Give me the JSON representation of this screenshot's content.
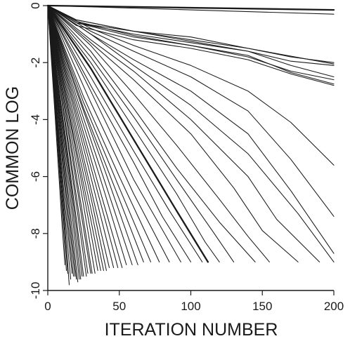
{
  "chart_data": {
    "type": "line",
    "xlabel": "ITERATION NUMBER",
    "ylabel": "COMMON LOG",
    "xlim": [
      0,
      200
    ],
    "ylim": [
      -10,
      0
    ],
    "xticks": [
      0,
      50,
      100,
      150,
      200
    ],
    "yticks": [
      0,
      -2,
      -4,
      -6,
      -8,
      -10
    ],
    "x_tick_labels": [
      "0",
      "50",
      "100",
      "150",
      "200"
    ],
    "y_tick_labels": [
      "0",
      "-2",
      "-4",
      "-6",
      "-8",
      "-10"
    ],
    "legend": "none",
    "grid": false,
    "series": [
      {
        "x": [
          0,
          200
        ],
        "y": [
          0,
          -0.15
        ],
        "bold": true
      },
      {
        "x": [
          0,
          200
        ],
        "y": [
          0,
          -0.3
        ]
      },
      {
        "x": [
          0,
          20,
          60,
          100,
          140,
          170,
          200
        ],
        "y": [
          0,
          -0.5,
          -0.9,
          -1.2,
          -1.5,
          -1.8,
          -2.0
        ]
      },
      {
        "x": [
          0,
          20,
          60,
          100,
          140,
          170,
          200
        ],
        "y": [
          0,
          -0.6,
          -1.0,
          -1.3,
          -1.6,
          -1.95,
          -2.1
        ]
      },
      {
        "x": [
          0,
          20,
          60,
          100,
          140,
          170,
          200
        ],
        "y": [
          0,
          -0.5,
          -0.9,
          -1.25,
          -1.6,
          -2.1,
          -2.5
        ]
      },
      {
        "x": [
          0,
          20,
          60,
          100,
          140,
          170,
          200
        ],
        "y": [
          0,
          -0.6,
          -1.1,
          -1.4,
          -1.8,
          -2.3,
          -2.6
        ]
      },
      {
        "x": [
          0,
          20,
          60,
          100,
          140,
          170,
          200
        ],
        "y": [
          0,
          -0.55,
          -1.05,
          -1.4,
          -1.75,
          -2.35,
          -2.75
        ]
      },
      {
        "x": [
          0,
          20,
          60,
          100,
          140,
          170,
          200
        ],
        "y": [
          0,
          -0.7,
          -1.2,
          -1.5,
          -1.9,
          -2.4,
          -2.8
        ]
      },
      {
        "x": [
          0,
          20,
          60,
          100,
          140,
          200
        ],
        "y": [
          0,
          -0.6,
          -0.9,
          -1.1,
          -1.5,
          -2.05
        ]
      },
      {
        "x": [
          0,
          30,
          60,
          100,
          140,
          170,
          200
        ],
        "y": [
          0,
          -0.8,
          -1.4,
          -2.1,
          -3.0,
          -4.1,
          -5.6
        ]
      },
      {
        "x": [
          0,
          30,
          60,
          100,
          140,
          170,
          200
        ],
        "y": [
          0,
          -0.9,
          -1.6,
          -2.5,
          -3.7,
          -5.4,
          -7.4
        ]
      },
      {
        "x": [
          0,
          30,
          60,
          100,
          140,
          170,
          200
        ],
        "y": [
          0,
          -1.0,
          -1.9,
          -3.0,
          -4.5,
          -6.5,
          -8.7
        ]
      },
      {
        "x": [
          0,
          30,
          60,
          100,
          140,
          175,
          200
        ],
        "y": [
          0,
          -1.0,
          -2.1,
          -3.5,
          -5.2,
          -7.3,
          -9.0
        ]
      },
      {
        "x": [
          0,
          30,
          60,
          100,
          140,
          160,
          190
        ],
        "y": [
          0,
          -1.2,
          -2.3,
          -4.0,
          -6.0,
          -7.5,
          -9.0
        ]
      },
      {
        "x": [
          0,
          30,
          60,
          100,
          130,
          150,
          175
        ],
        "y": [
          0,
          -1.3,
          -2.6,
          -4.5,
          -6.4,
          -7.9,
          -9.0
        ]
      },
      {
        "x": [
          0,
          30,
          60,
          90,
          120,
          140,
          155
        ],
        "y": [
          0,
          -1.4,
          -3.1,
          -4.9,
          -6.8,
          -8.1,
          -9.0
        ]
      },
      {
        "x": [
          0,
          30,
          60,
          90,
          120,
          145
        ],
        "y": [
          0,
          -1.6,
          -3.6,
          -5.7,
          -7.6,
          -9.0
        ]
      },
      {
        "x": [
          0,
          30,
          60,
          90,
          115,
          130
        ],
        "y": [
          0,
          -1.8,
          -3.9,
          -6.1,
          -7.9,
          -9.0
        ]
      },
      {
        "x": [
          0,
          30,
          60,
          90,
          110,
          120
        ],
        "y": [
          0,
          -2.0,
          -4.3,
          -6.6,
          -8.3,
          -9.0
        ]
      },
      {
        "x": [
          0,
          30,
          60,
          90,
          112
        ],
        "y": [
          0,
          -2.2,
          -4.7,
          -7.2,
          -9.0
        ],
        "bold": true
      },
      {
        "x": [
          0,
          30,
          60,
          85,
          108
        ],
        "y": [
          0,
          -2.5,
          -5.1,
          -7.2,
          -9.0
        ]
      },
      {
        "x": [
          0,
          30,
          60,
          80,
          100
        ],
        "y": [
          0,
          -2.8,
          -5.5,
          -7.4,
          -9.0
        ]
      },
      {
        "x": [
          0,
          30,
          60,
          93
        ],
        "y": [
          0,
          -3.0,
          -6.1,
          -9.0
        ]
      },
      {
        "x": [
          0,
          30,
          60,
          85
        ],
        "y": [
          0,
          -3.4,
          -6.6,
          -9.0
        ]
      },
      {
        "x": [
          0,
          25,
          50,
          78
        ],
        "y": [
          0,
          -3.2,
          -6.0,
          -9.0
        ]
      },
      {
        "x": [
          0,
          25,
          50,
          72
        ],
        "y": [
          0,
          -3.4,
          -6.4,
          -9.0
        ]
      },
      {
        "x": [
          0,
          25,
          50,
          67
        ],
        "y": [
          0,
          -3.6,
          -6.8,
          -9.0
        ]
      },
      {
        "x": [
          0,
          20,
          40,
          63
        ],
        "y": [
          0,
          -3.0,
          -5.8,
          -9.1
        ]
      },
      {
        "x": [
          0,
          20,
          40,
          59
        ],
        "y": [
          0,
          -3.2,
          -6.2,
          -9.1
        ]
      },
      {
        "x": [
          0,
          20,
          40,
          55
        ],
        "y": [
          0,
          -3.4,
          -6.6,
          -9.1
        ]
      },
      {
        "x": [
          0,
          20,
          40,
          52
        ],
        "y": [
          0,
          -3.6,
          -7.1,
          -9.2
        ]
      },
      {
        "x": [
          0,
          20,
          40,
          49
        ],
        "y": [
          0,
          -3.8,
          -7.5,
          -9.2
        ]
      },
      {
        "x": [
          0,
          15,
          30,
          46
        ],
        "y": [
          0,
          -3.0,
          -6.0,
          -9.2
        ]
      },
      {
        "x": [
          0,
          15,
          30,
          43
        ],
        "y": [
          0,
          -3.2,
          -6.4,
          -9.2
        ]
      },
      {
        "x": [
          0,
          15,
          30,
          41
        ],
        "y": [
          0,
          -3.4,
          -6.7,
          -9.3
        ]
      },
      {
        "x": [
          0,
          15,
          30,
          39
        ],
        "y": [
          0,
          -3.6,
          -7.1,
          -9.3
        ]
      },
      {
        "x": [
          0,
          15,
          30,
          37
        ],
        "y": [
          0,
          -3.8,
          -7.5,
          -9.3
        ]
      },
      {
        "x": [
          0,
          12,
          24,
          35
        ],
        "y": [
          0,
          -3.1,
          -6.3,
          -9.3
        ]
      },
      {
        "x": [
          0,
          12,
          24,
          33
        ],
        "y": [
          0,
          -3.3,
          -6.7,
          -9.4
        ]
      },
      {
        "x": [
          0,
          12,
          24,
          31
        ],
        "y": [
          0,
          -3.5,
          -7.2,
          -9.4
        ]
      },
      {
        "x": [
          0,
          12,
          24,
          30
        ],
        "y": [
          0,
          -3.7,
          -7.5,
          -9.4
        ]
      },
      {
        "x": [
          0,
          10,
          20,
          28
        ],
        "y": [
          0,
          -3.3,
          -6.7,
          -9.4
        ]
      },
      {
        "x": [
          0,
          10,
          20,
          27
        ],
        "y": [
          0,
          -3.4,
          -7.0,
          -9.5
        ]
      },
      {
        "x": [
          0,
          10,
          20,
          25
        ],
        "y": [
          0,
          -3.7,
          -7.5,
          -9.5
        ]
      },
      {
        "x": [
          0,
          10,
          20,
          24
        ],
        "y": [
          0,
          -3.8,
          -7.8,
          -9.5
        ]
      },
      {
        "x": [
          0,
          8,
          16,
          23
        ],
        "y": [
          0,
          -3.2,
          -6.5,
          -9.6
        ]
      },
      {
        "x": [
          0,
          8,
          16,
          22
        ],
        "y": [
          0,
          -3.4,
          -6.9,
          -9.6
        ]
      },
      {
        "x": [
          0,
          8,
          16,
          21
        ],
        "y": [
          0,
          -3.6,
          -7.4,
          -9.7
        ]
      },
      {
        "x": [
          0,
          8,
          16,
          20
        ],
        "y": [
          0,
          -3.8,
          -7.8,
          -9.6
        ]
      },
      {
        "x": [
          0,
          7,
          14,
          19
        ],
        "y": [
          0,
          -3.5,
          -7.2,
          -9.5
        ]
      },
      {
        "x": [
          0,
          7,
          14,
          18
        ],
        "y": [
          0,
          -3.7,
          -7.6,
          -9.5
        ]
      },
      {
        "x": [
          0,
          6,
          12,
          17
        ],
        "y": [
          0,
          -3.4,
          -7.0,
          -9.4
        ]
      },
      {
        "x": [
          0,
          6,
          12,
          16
        ],
        "y": [
          0,
          -3.6,
          -7.4,
          -9.6
        ]
      },
      {
        "x": [
          0,
          6,
          12,
          15
        ],
        "y": [
          0,
          -3.8,
          -7.8,
          -9.8
        ]
      },
      {
        "x": [
          0,
          5,
          10,
          14
        ],
        "y": [
          0,
          -3.3,
          -6.8,
          -9.4
        ]
      },
      {
        "x": [
          0,
          5,
          10,
          13
        ],
        "y": [
          0,
          -3.5,
          -7.2,
          -9.3
        ]
      },
      {
        "x": [
          0,
          5,
          10,
          12
        ],
        "y": [
          0,
          -3.8,
          -7.7,
          -9.1
        ]
      }
    ]
  }
}
